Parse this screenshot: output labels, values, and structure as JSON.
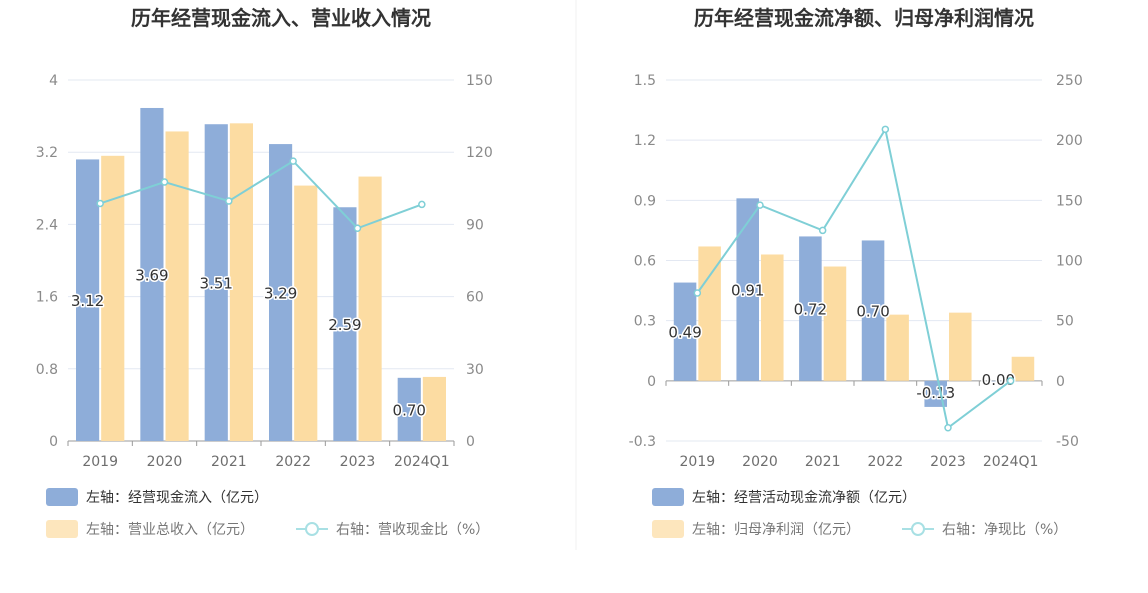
{
  "colors": {
    "bar_blue": "#8eadd9",
    "bar_orange": "#fcdca2",
    "line_cyan": "#7fcfd6",
    "grid": "#e3e8f2",
    "axis": "#9a9a9a"
  },
  "chart_data": [
    {
      "type": "bar",
      "title": "历年经营现金流入、营业收入情况",
      "categories": [
        "2019",
        "2020",
        "2021",
        "2022",
        "2023",
        "2024Q1"
      ],
      "left_axis": {
        "ylim": [
          0,
          4
        ],
        "ticks": [
          "0",
          "0.8",
          "1.6",
          "2.4",
          "3.2",
          "4"
        ]
      },
      "right_axis": {
        "ylim": [
          0,
          150
        ],
        "ticks": [
          "0",
          "30",
          "60",
          "90",
          "120",
          "150"
        ]
      },
      "series": [
        {
          "name": "左轴：经营现金流入（亿元）",
          "axis": "left",
          "kind": "bar",
          "color": "#8eadd9",
          "values": [
            3.12,
            3.69,
            3.51,
            3.29,
            2.59,
            0.7
          ],
          "labels": [
            "3.12",
            "3.69",
            "3.51",
            "3.29",
            "2.59",
            "0.70"
          ]
        },
        {
          "name": "左轴：营业总收入（亿元）",
          "axis": "left",
          "kind": "bar",
          "color": "#fcdca2",
          "values": [
            3.16,
            3.43,
            3.52,
            2.83,
            2.93,
            0.71
          ]
        },
        {
          "name": "右轴：营收现金比（%）",
          "axis": "right",
          "kind": "line",
          "color": "#7fcfd6",
          "values": [
            98.7,
            107.6,
            99.7,
            116.3,
            88.4,
            98.3
          ]
        }
      ],
      "legend": "bottom"
    },
    {
      "type": "bar",
      "title": "历年经营现金流净额、归母净利润情况",
      "categories": [
        "2019",
        "2020",
        "2021",
        "2022",
        "2023",
        "2024Q1"
      ],
      "left_axis": {
        "ylim": [
          -0.3,
          1.5
        ],
        "ticks": [
          "-0.3",
          "0",
          "0.3",
          "0.6",
          "0.9",
          "1.2",
          "1.5"
        ]
      },
      "right_axis": {
        "ylim": [
          -50,
          250
        ],
        "ticks": [
          "-50",
          "0",
          "50",
          "100",
          "150",
          "200",
          "250"
        ]
      },
      "series": [
        {
          "name": "左轴：经营活动现金流净额（亿元）",
          "axis": "left",
          "kind": "bar",
          "color": "#8eadd9",
          "values": [
            0.49,
            0.91,
            0.72,
            0.7,
            -0.13,
            0.0
          ],
          "labels": [
            "0.49",
            "0.91",
            "0.72",
            "0.70",
            "-0.13",
            "0.00"
          ]
        },
        {
          "name": "左轴：归母净利润（亿元）",
          "axis": "left",
          "kind": "bar",
          "color": "#fcdca2",
          "values": [
            0.67,
            0.63,
            0.57,
            0.33,
            0.34,
            0.12
          ]
        },
        {
          "name": "右轴：净现比（%）",
          "axis": "right",
          "kind": "line",
          "color": "#7fcfd6",
          "values": [
            73,
            146,
            125,
            209,
            -39,
            0
          ]
        }
      ],
      "legend": "bottom"
    }
  ]
}
